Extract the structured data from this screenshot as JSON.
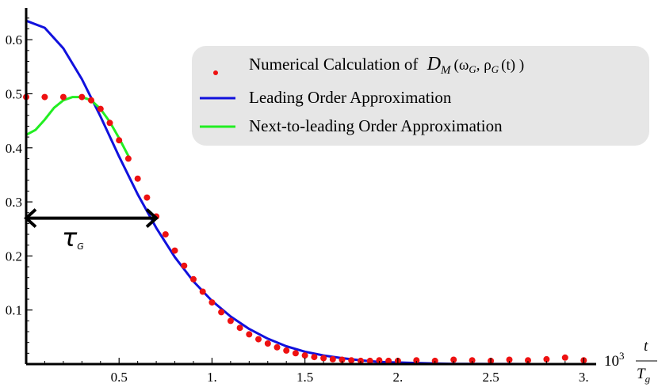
{
  "chart_data": {
    "type": "line",
    "title": "",
    "xlabel": {
      "prefix": "10",
      "exponent": "3",
      "numerator": "t",
      "denominator": "T",
      "denominator_sub": "g"
    },
    "ylabel": "",
    "xlim": [
      0,
      3.05
    ],
    "ylim": [
      0,
      0.65
    ],
    "x_ticks": [
      {
        "value": 0.5,
        "label": "0.5"
      },
      {
        "value": 1.0,
        "label": "1."
      },
      {
        "value": 1.5,
        "label": "1.5"
      },
      {
        "value": 2.0,
        "label": "2."
      },
      {
        "value": 2.5,
        "label": "2.5"
      },
      {
        "value": 3.0,
        "label": "3."
      }
    ],
    "y_ticks": [
      {
        "value": 0.1,
        "label": "0.1"
      },
      {
        "value": 0.2,
        "label": "0.2"
      },
      {
        "value": 0.3,
        "label": "0.3"
      },
      {
        "value": 0.4,
        "label": "0.4"
      },
      {
        "value": 0.5,
        "label": "0.5"
      },
      {
        "value": 0.6,
        "label": "0.6"
      }
    ],
    "grid": false,
    "legend_position": "top-right",
    "legend": {
      "numerical": {
        "text": "Numerical Calculation of",
        "math": "D",
        "math_sub": "M",
        "args": "(ω",
        "arg1_sub": "G",
        "arg_sep": ", ρ",
        "arg2_sub": "G",
        "arg_t": "(t) )"
      },
      "leading": "Leading Order Approximation",
      "next": "Next-to-leading Order Approximation"
    },
    "annotation": {
      "label": "τ",
      "label_sub": "G",
      "x_start": 0.0,
      "x_end": 0.7,
      "y": 0.27
    },
    "colors": {
      "numerical": "#ee1111",
      "leading": "#1111dd",
      "next": "#22ee22",
      "legend_bg": "#e6e6e6"
    },
    "series": [
      {
        "key": "leading",
        "type": "line",
        "x": [
          0,
          0.1,
          0.2,
          0.3,
          0.4,
          0.5,
          0.6,
          0.7,
          0.8,
          0.9,
          1.0,
          1.1,
          1.2,
          1.3,
          1.4,
          1.5,
          1.6,
          1.7,
          1.8,
          1.9,
          2.0,
          2.1,
          2.2,
          2.3,
          2.4,
          2.5,
          2.6,
          2.7,
          2.8,
          2.9,
          3.0
        ],
        "y": [
          0.635,
          0.622,
          0.584,
          0.527,
          0.458,
          0.384,
          0.314,
          0.252,
          0.198,
          0.153,
          0.117,
          0.088,
          0.065,
          0.047,
          0.033,
          0.023,
          0.016,
          0.011,
          0.007,
          0.004,
          0.003,
          0.002,
          0.001,
          0.0005,
          0.0003,
          0.0002,
          0.0001,
          0.0,
          0.0,
          0.0,
          0.0
        ]
      },
      {
        "key": "next",
        "type": "line",
        "x": [
          0,
          0.05,
          0.1,
          0.15,
          0.2,
          0.25,
          0.3,
          0.35,
          0.4,
          0.45,
          0.5,
          0.55
        ],
        "y": [
          0.424,
          0.433,
          0.452,
          0.474,
          0.488,
          0.494,
          0.494,
          0.488,
          0.472,
          0.448,
          0.418,
          0.385
        ]
      },
      {
        "key": "numerical",
        "type": "scatter",
        "x": [
          0.0,
          0.1,
          0.2,
          0.3,
          0.35,
          0.4,
          0.45,
          0.5,
          0.55,
          0.6,
          0.65,
          0.7,
          0.75,
          0.8,
          0.85,
          0.9,
          0.95,
          1.0,
          1.05,
          1.1,
          1.15,
          1.2,
          1.25,
          1.3,
          1.35,
          1.4,
          1.45,
          1.5,
          1.55,
          1.6,
          1.65,
          1.7,
          1.75,
          1.8,
          1.85,
          1.9,
          1.95,
          2.0,
          2.1,
          2.2,
          2.3,
          2.4,
          2.5,
          2.6,
          2.7,
          2.8,
          2.9,
          3.0
        ],
        "y": [
          0.494,
          0.494,
          0.494,
          0.494,
          0.488,
          0.472,
          0.446,
          0.414,
          0.38,
          0.343,
          0.308,
          0.273,
          0.24,
          0.21,
          0.182,
          0.157,
          0.134,
          0.114,
          0.096,
          0.08,
          0.067,
          0.055,
          0.046,
          0.038,
          0.031,
          0.025,
          0.02,
          0.016,
          0.013,
          0.011,
          0.009,
          0.008,
          0.007,
          0.006,
          0.006,
          0.007,
          0.006,
          0.006,
          0.007,
          0.006,
          0.008,
          0.007,
          0.006,
          0.008,
          0.007,
          0.009,
          0.012,
          0.007
        ]
      }
    ]
  }
}
